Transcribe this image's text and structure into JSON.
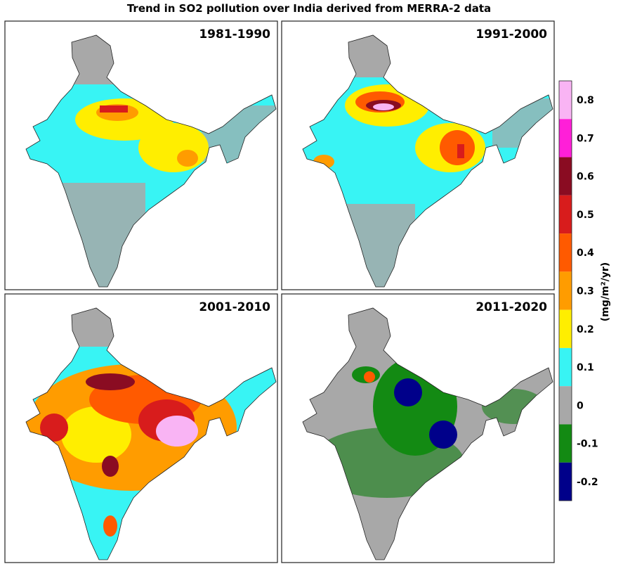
{
  "title": "Trend in SO2 pollution over India derived from MERRA-2 data",
  "panels": [
    {
      "title": "1981-1990"
    },
    {
      "title": "1991-2000"
    },
    {
      "title": "2001-2010"
    },
    {
      "title": "2011-2020"
    }
  ],
  "colorbar": {
    "label": "(mg/m²/yr)",
    "levels": [
      {
        "value": 0.8,
        "color": "#f9b4f4"
      },
      {
        "value": 0.7,
        "color": "#ff1fd8"
      },
      {
        "value": 0.6,
        "color": "#8a0c22"
      },
      {
        "value": 0.5,
        "color": "#d81c1c"
      },
      {
        "value": 0.4,
        "color": "#ff5a00"
      },
      {
        "value": 0.3,
        "color": "#ff9c00"
      },
      {
        "value": 0.2,
        "color": "#ffee00"
      },
      {
        "value": 0.1,
        "color": "#38f4f4"
      },
      {
        "value": 0,
        "color": "#a8a8a8"
      },
      {
        "value": -0.1,
        "color": "#138a13"
      },
      {
        "value": -0.2,
        "color": "#00008a"
      }
    ]
  }
}
